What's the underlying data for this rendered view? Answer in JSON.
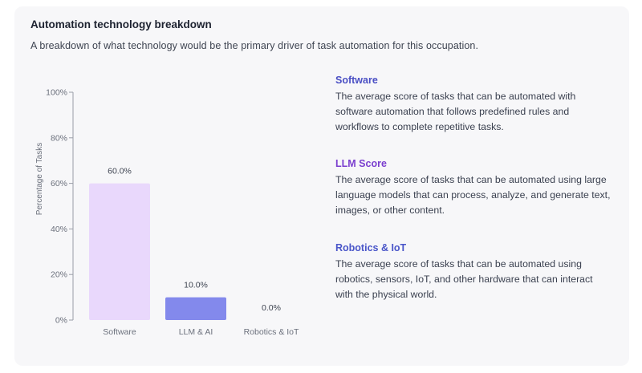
{
  "section": {
    "title": "Automation technology breakdown",
    "subtitle": "A breakdown of what technology would be the primary driver of task automation for this occupation."
  },
  "legend": [
    {
      "heading": "Software",
      "color": "#4a4fc4",
      "description": "The average score of tasks that can be automated with software automation that follows predefined rules and workflows to complete repetitive tasks."
    },
    {
      "heading": "LLM Score",
      "color": "#7b3fcf",
      "description": "The average score of tasks that can be automated using large language models that can process, analyze, and generate text, images, or other content."
    },
    {
      "heading": "Robotics & IoT",
      "color": "#4a56c9",
      "description": "The average score of tasks that can be automated using robotics, sensors, IoT, and other hardware that can interact with the physical world."
    }
  ],
  "chart_data": {
    "type": "bar",
    "categories": [
      "Software",
      "LLM & AI",
      "Robotics & IoT"
    ],
    "values": [
      60.0,
      10.0,
      0.0
    ],
    "value_labels": [
      "60.0%",
      "10.0%",
      "0.0%"
    ],
    "bar_colors": [
      "#e9d8fc",
      "#8389ec",
      "#e9d8fc"
    ],
    "ylabel": "Percentage of Tasks",
    "ylim": [
      0,
      100
    ],
    "yticks": [
      0,
      20,
      40,
      60,
      80,
      100
    ],
    "ytick_labels": [
      "0%",
      "20%",
      "40%",
      "60%",
      "80%",
      "100%"
    ],
    "grid": false
  }
}
